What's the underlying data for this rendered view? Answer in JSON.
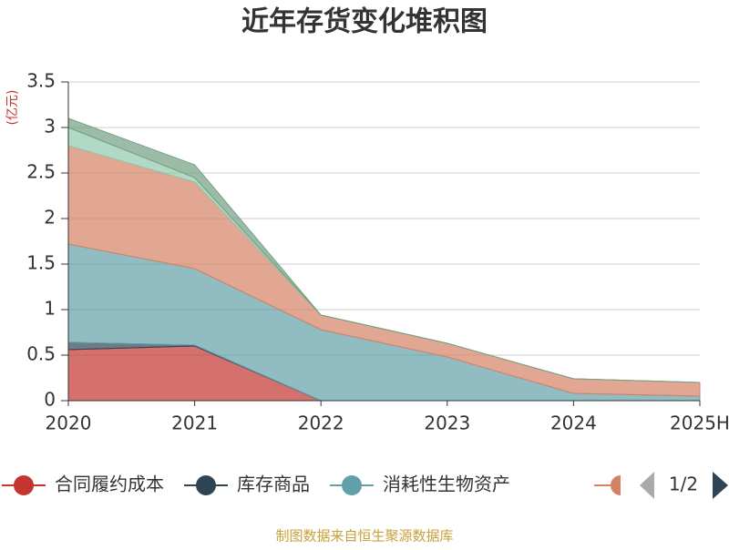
{
  "chart_data": {
    "type": "stacked_area",
    "title": "近年存货变化堆积图",
    "y_label": "(亿元)",
    "categories": [
      "2020",
      "2021",
      "2022",
      "2023",
      "2024",
      "2025H"
    ],
    "ylim": [
      0,
      3.5
    ],
    "yticks": [
      0,
      0.5,
      1,
      1.5,
      2,
      2.5,
      3,
      3.5
    ],
    "grid": true,
    "series": [
      {
        "name": "合同履约成本",
        "color": "#c23531",
        "values": [
          0.56,
          0.6,
          0,
          0,
          0,
          0
        ]
      },
      {
        "name": "库存商品",
        "color": "#2f4554",
        "values": [
          0.08,
          0.01,
          0,
          0,
          0,
          0
        ]
      },
      {
        "name": "消耗性生物资产",
        "color": "#61a0a8",
        "values": [
          1.08,
          0.84,
          0.78,
          0.48,
          0.08,
          0.05
        ]
      },
      {
        "color": "#d48265",
        "values": [
          1.08,
          0.95,
          0.16,
          0.15,
          0.16,
          0.15
        ]
      },
      {
        "color": "#91c7ae",
        "values": [
          0.2,
          0.05,
          0,
          0,
          0,
          0
        ]
      },
      {
        "color": "#749f83",
        "values": [
          0.1,
          0.14,
          0,
          0,
          0,
          0
        ]
      }
    ],
    "legend_page": "1/2",
    "source": "制图数据来自恒生聚源数据库"
  }
}
